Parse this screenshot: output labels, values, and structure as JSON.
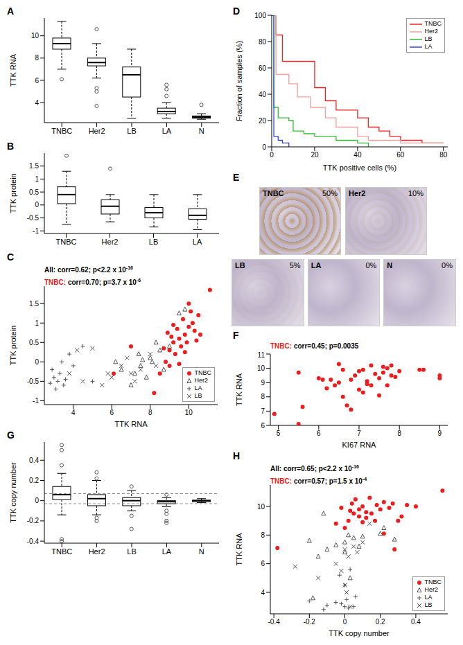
{
  "chart_data": [
    {
      "type": "box",
      "title": "A",
      "ylabel": "TTK RNA",
      "categories": [
        "TNBC",
        "Her2",
        "LB",
        "LA",
        "N"
      ],
      "boxes": [
        {
          "min": 7.0,
          "q1": 8.8,
          "median": 9.3,
          "q3": 9.8,
          "max": 11.3,
          "outliers": [
            6.1
          ]
        },
        {
          "min": 6.2,
          "q1": 7.3,
          "median": 7.6,
          "q3": 8.0,
          "max": 9.3,
          "outliers": [
            10.6,
            5.3,
            5.0,
            3.7
          ]
        },
        {
          "min": 2.6,
          "q1": 4.5,
          "median": 6.5,
          "q3": 7.2,
          "max": 8.8,
          "outliers": []
        },
        {
          "min": 2.6,
          "q1": 3.0,
          "median": 3.2,
          "q3": 3.5,
          "max": 4.0,
          "outliers": [
            4.6,
            5.2,
            5.6
          ]
        },
        {
          "min": 2.5,
          "q1": 2.6,
          "median": 2.7,
          "q3": 2.8,
          "max": 3.0,
          "outliers": [
            3.8
          ]
        }
      ],
      "ylim": [
        2.2,
        11.6
      ],
      "yticks": [
        4,
        6,
        8,
        10
      ]
    },
    {
      "type": "box",
      "title": "B",
      "ylabel": "TTK protein",
      "categories": [
        "TNBC",
        "Her2",
        "LB",
        "LA"
      ],
      "boxes": [
        {
          "min": -0.75,
          "q1": 0.05,
          "median": 0.4,
          "q3": 0.7,
          "max": 1.3,
          "outliers": [
            1.9
          ]
        },
        {
          "min": -0.65,
          "q1": -0.35,
          "median": -0.05,
          "q3": 0.2,
          "max": 0.4,
          "outliers": [
            1.4
          ]
        },
        {
          "min": -0.85,
          "q1": -0.5,
          "median": -0.3,
          "q3": -0.1,
          "max": 0.4,
          "outliers": []
        },
        {
          "min": -0.95,
          "q1": -0.55,
          "median": -0.4,
          "q3": -0.15,
          "max": 0.4,
          "outliers": []
        }
      ],
      "ylim": [
        -1.1,
        2.0
      ],
      "yticks": [
        -1,
        -0.5,
        0,
        0.5,
        1,
        1.5
      ]
    },
    {
      "type": "scatter",
      "title": "C",
      "xlabel": "TTK RNA",
      "ylabel": "TTK protein",
      "annotations": [
        {
          "label": "All:",
          "text": "corr=0.62; p<2.2 x 10",
          "exponent": "-16",
          "color": "#000000"
        },
        {
          "label": "TNBC:",
          "text": "corr=0.70; p=3.7 x 10",
          "exponent": "-6",
          "color": "#ee1c1c"
        }
      ],
      "series": [
        {
          "name": "TNBC",
          "color": "#ee1c1c",
          "marker": "circle",
          "x": [
            9.0,
            9.2,
            9.5,
            9.8,
            10.0,
            10.2,
            10.5,
            11.1,
            9.7,
            10.1,
            9.3,
            8.8,
            8.5,
            9.0,
            9.6,
            10.3,
            9.9,
            9.4,
            10.6,
            9.1,
            8.7,
            6.1,
            7.0,
            8.2,
            9.8,
            10.4,
            9.5,
            8.9,
            10.0,
            9.2
          ],
          "values": [
            0.3,
            0.5,
            0.6,
            0.7,
            0.9,
            1.0,
            1.2,
            1.85,
            1.1,
            1.3,
            0.2,
            0.0,
            -0.3,
            -0.1,
            0.4,
            0.8,
            0.5,
            0.85,
            0.7,
            0.65,
            0.35,
            -0.3,
            0.4,
            -0.8,
            0.25,
            0.55,
            -0.05,
            0.75,
            1.5,
            0.95
          ]
        },
        {
          "name": "Her2",
          "color": "#555555",
          "marker": "triangle",
          "x": [
            7.5,
            8.0,
            7.2,
            8.5,
            9.5,
            8.1,
            7.8,
            6.5,
            7.4,
            9.0,
            8.7,
            7.0,
            6.2,
            8.3,
            9.8,
            7.6
          ],
          "values": [
            -0.1,
            0.1,
            -0.3,
            0.3,
            1.25,
            0.0,
            -0.4,
            -0.2,
            0.2,
            0.4,
            -0.2,
            -0.6,
            0.0,
            0.5,
            1.35,
            0.05
          ]
        },
        {
          "name": "LA",
          "color": "#555555",
          "marker": "plus",
          "x": [
            3.0,
            3.2,
            3.5,
            2.9,
            3.8,
            3.3,
            4.5,
            3.1,
            4.0,
            3.4,
            5.0,
            3.6,
            2.8
          ],
          "values": [
            -0.4,
            -0.5,
            -0.6,
            -0.2,
            0.2,
            -0.3,
            0.4,
            -0.7,
            -0.1,
            0.0,
            -0.5,
            -0.45,
            -0.55
          ]
        },
        {
          "name": "LB",
          "color": "#555555",
          "marker": "x",
          "x": [
            5.0,
            6.0,
            6.5,
            7.0,
            5.5,
            7.5,
            8.0,
            4.5,
            6.8,
            7.2,
            8.3,
            5.8,
            4.2,
            3.8
          ],
          "values": [
            0.35,
            -0.4,
            -0.1,
            -0.3,
            -0.6,
            -0.2,
            0.2,
            -0.5,
            0.1,
            -0.5,
            -0.1,
            -0.3,
            0.3,
            -0.3
          ]
        }
      ],
      "xlim": [
        2.5,
        11.5
      ],
      "xticks": [
        4,
        6,
        8,
        10
      ],
      "ylim": [
        -1.1,
        1.95
      ],
      "yticks": [
        -1,
        -0.5,
        0,
        0.5,
        1,
        1.5
      ],
      "legend": "bottom right"
    },
    {
      "type": "box",
      "title": "G",
      "ylabel": "TTK copy number",
      "categories": [
        "TNBC",
        "Her2",
        "LB",
        "LA",
        "N"
      ],
      "boxes": [
        {
          "min": -0.14,
          "q1": 0.01,
          "median": 0.06,
          "q3": 0.14,
          "max": 0.27,
          "outliers": [
            0.55,
            0.5,
            0.35,
            -0.38,
            -0.4
          ]
        },
        {
          "min": -0.14,
          "q1": -0.05,
          "median": 0.02,
          "q3": 0.06,
          "max": 0.2,
          "outliers": [
            0.28,
            0.22,
            -0.17,
            -0.2
          ]
        },
        {
          "min": -0.1,
          "q1": -0.05,
          "median": 0.0,
          "q3": 0.03,
          "max": 0.1,
          "outliers": [
            0.14,
            -0.15,
            -0.28
          ]
        },
        {
          "min": -0.06,
          "q1": -0.03,
          "median": -0.01,
          "q3": 0.0,
          "max": 0.03,
          "outliers": [
            0.06,
            -0.1,
            -0.13,
            -0.2,
            -0.22
          ]
        },
        {
          "min": -0.02,
          "q1": -0.01,
          "median": 0.0,
          "q3": 0.005,
          "max": 0.02,
          "outliers": []
        }
      ],
      "reference_lines": [
        0.07,
        -0.03
      ],
      "ylim": [
        -0.42,
        0.58
      ],
      "yticks": [
        -0.4,
        -0.2,
        0,
        0.2,
        0.4
      ]
    },
    {
      "type": "line",
      "title": "D",
      "xlabel": "TTK positive cells (%)",
      "ylabel": "Fraction of samples (%)",
      "line_style": "step",
      "series": [
        {
          "name": "TNBC",
          "color": "#ee2222",
          "x": [
            0,
            2,
            5,
            18,
            20,
            25,
            30,
            38,
            40,
            45,
            50,
            55,
            60,
            70,
            80
          ],
          "values": [
            100,
            85,
            65,
            65,
            45,
            35,
            28,
            28,
            22,
            15,
            12,
            8,
            5,
            3,
            3
          ]
        },
        {
          "name": "Her2",
          "color": "#f0a0a0",
          "x": [
            0,
            2,
            8,
            12,
            18,
            25,
            30,
            40,
            45,
            60,
            80
          ],
          "values": [
            100,
            55,
            48,
            38,
            30,
            22,
            15,
            8,
            5,
            3,
            3
          ]
        },
        {
          "name": "LB",
          "color": "#33bb33",
          "x": [
            0,
            1,
            3,
            8,
            10,
            15,
            20,
            30,
            40,
            45
          ],
          "values": [
            100,
            30,
            22,
            20,
            12,
            10,
            8,
            5,
            3,
            0
          ]
        },
        {
          "name": "LA",
          "color": "#3344cc",
          "x": [
            0,
            1,
            3,
            5,
            8
          ],
          "values": [
            100,
            8,
            5,
            3,
            0
          ]
        }
      ],
      "xlim": [
        0,
        82
      ],
      "xticks": [
        0,
        20,
        40,
        60,
        80
      ],
      "ylim": [
        0,
        100
      ],
      "yticks": [
        0,
        20,
        40,
        60,
        80,
        100
      ],
      "legend": "top right"
    },
    {
      "type": "image_grid",
      "title": "E",
      "images": [
        {
          "name": "TNBC",
          "value": 50,
          "value_label": "50%"
        },
        {
          "name": "Her2",
          "value": 10,
          "value_label": "10%"
        },
        {
          "name": "LB",
          "value": 5,
          "value_label": "5%"
        },
        {
          "name": "LA",
          "value": 0,
          "value_label": "0%"
        },
        {
          "name": "N",
          "value": 0,
          "value_label": "0%"
        }
      ]
    },
    {
      "type": "scatter",
      "title": "F",
      "xlabel": "KI67 RNA",
      "ylabel": "TTK RNA",
      "annotations": [
        {
          "label": "TNBC:",
          "text": "corr=0.45; p=0.0035",
          "color": "#ee1c1c"
        }
      ],
      "series": [
        {
          "name": "TNBC",
          "color": "#ee1c1c",
          "marker": "circle",
          "x": [
            4.9,
            5.5,
            5.6,
            5.5,
            6.0,
            6.1,
            6.2,
            6.3,
            6.4,
            6.5,
            6.5,
            6.6,
            6.6,
            6.7,
            6.8,
            6.8,
            6.9,
            7.0,
            7.0,
            7.1,
            7.1,
            7.2,
            7.3,
            7.3,
            7.4,
            7.5,
            7.5,
            7.6,
            7.7,
            7.7,
            7.8,
            7.8,
            7.9,
            8.0,
            8.5,
            8.6,
            9.0,
            9.0,
            7.6,
            7.2
          ],
          "values": [
            6.8,
            6.1,
            7.3,
            9.7,
            9.3,
            9.2,
            8.6,
            9.2,
            8.8,
            9.0,
            10.3,
            8.0,
            9.9,
            7.4,
            7.1,
            9.2,
            9.5,
            8.5,
            9.8,
            8.3,
            9.9,
            9.1,
            8.8,
            10.2,
            9.6,
            8.1,
            9.3,
            9.7,
            8.8,
            10.0,
            9.5,
            10.2,
            9.4,
            9.8,
            9.9,
            9.9,
            9.3,
            9.5,
            10.1,
            8.9
          ]
        }
      ],
      "xlim": [
        4.8,
        9.2
      ],
      "xticks": [
        5,
        6,
        7,
        8,
        9
      ],
      "ylim": [
        6,
        11
      ],
      "yticks": [
        6,
        7,
        8,
        9,
        10,
        11
      ]
    },
    {
      "type": "scatter",
      "title": "H",
      "xlabel": "TTK copy number",
      "ylabel": "TTK RNA",
      "annotations": [
        {
          "label": "All:",
          "text": "corr=0.65; p<2.2 x 10",
          "exponent": "-16",
          "color": "#000000"
        },
        {
          "label": "TNBC:",
          "text": "corr=0.57; p=1.5 x 10",
          "exponent": "-4",
          "color": "#ee1c1c"
        }
      ],
      "series": [
        {
          "name": "TNBC",
          "color": "#ee1c1c",
          "marker": "circle",
          "x": [
            -0.38,
            0.0,
            0.02,
            0.05,
            0.08,
            0.1,
            0.12,
            0.15,
            0.18,
            0.2,
            0.22,
            0.25,
            0.27,
            0.3,
            0.35,
            0.55,
            0.06,
            -0.05,
            0.03,
            0.1,
            0.14,
            0.28,
            0.32,
            -0.02,
            0.08,
            0.17,
            0.22,
            0.4,
            0.04,
            0.12
          ],
          "values": [
            7.1,
            8.5,
            9.0,
            9.5,
            9.8,
            10.0,
            9.2,
            9.5,
            10.1,
            9.8,
            10.3,
            9.9,
            10.2,
            9.0,
            10.1,
            11.1,
            10.5,
            8.8,
            9.7,
            8.9,
            10.6,
            7.0,
            9.3,
            9.9,
            9.3,
            9.0,
            8.1,
            10.0,
            10.2,
            9.6
          ]
        },
        {
          "name": "Her2",
          "color": "#555555",
          "marker": "triangle",
          "x": [
            -0.2,
            -0.15,
            -0.1,
            0.0,
            0.02,
            0.05,
            0.08,
            0.28,
            0.2,
            -0.12,
            0.0,
            -0.05,
            0.1,
            0.03,
            -0.18,
            0.22
          ],
          "values": [
            7.6,
            6.5,
            7.0,
            7.5,
            8.0,
            7.8,
            7.2,
            7.7,
            8.1,
            9.5,
            6.8,
            7.3,
            7.9,
            5.0,
            3.6,
            8.5
          ]
        },
        {
          "name": "LA",
          "color": "#555555",
          "marker": "plus",
          "x": [
            0.0,
            -0.02,
            0.01,
            -0.05,
            0.02,
            -0.1,
            0.0,
            -0.03,
            0.03,
            -0.2,
            0.05,
            -0.12,
            0.06
          ],
          "values": [
            3.0,
            3.2,
            3.5,
            3.3,
            2.9,
            3.1,
            4.5,
            5.2,
            5.6,
            3.4,
            3.0,
            2.8,
            3.7
          ]
        },
        {
          "name": "LB",
          "color": "#555555",
          "marker": "x",
          "x": [
            0.0,
            0.02,
            0.05,
            -0.05,
            0.1,
            0.14,
            -0.28,
            -0.15,
            0.03,
            0.0,
            -0.02,
            0.07,
            0.01
          ],
          "values": [
            4.5,
            6.5,
            7.2,
            6.0,
            7.5,
            8.8,
            5.8,
            5.0,
            3.0,
            7.0,
            5.5,
            6.8,
            4.0
          ]
        }
      ],
      "xlim": [
        -0.42,
        0.58
      ],
      "xticks": [
        -0.4,
        -0.2,
        0,
        0.2,
        0.4
      ],
      "ylim": [
        2.5,
        11.5
      ],
      "yticks": [
        4,
        6,
        8,
        10
      ],
      "legend": "bottom right"
    }
  ]
}
